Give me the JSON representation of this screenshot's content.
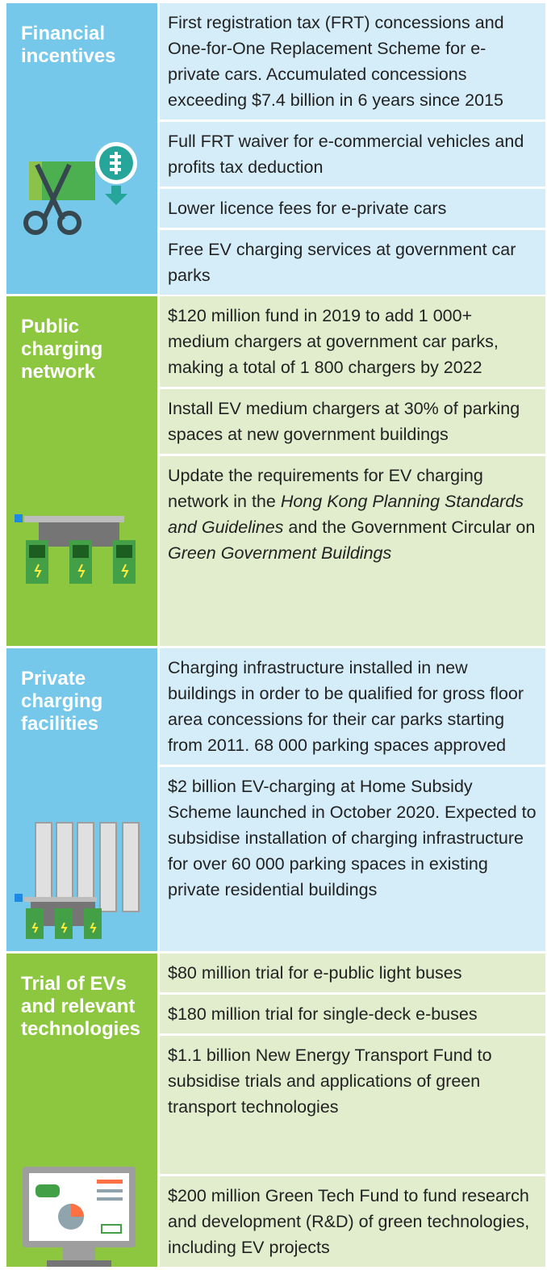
{
  "sections": [
    {
      "title": "Financial incentives",
      "items": [
        [
          "First registration tax (FRT) concessions and One-for-One Replacement Scheme for e-private cars. Accumulated concessions exceeding $7.4 billion in 6 years since 2015"
        ],
        [
          "Full FRT waiver for e-commercial vehicles and profits tax deduction"
        ],
        [
          "Lower licence fees for e-private cars"
        ],
        [
          "Free EV charging services at government car parks"
        ]
      ]
    },
    {
      "title": "Public charging network",
      "items": [
        [
          "$120 million fund in 2019 to add 1 000+ medium chargers at government car parks, making a total of 1 800 chargers by 2022"
        ],
        [
          "Install EV medium chargers at 30% of parking spaces at new government buildings"
        ],
        [
          "Update the requirements for EV charging network in the ",
          "Hong Kong Planning Standards and Guidelines",
          " and the Government Circular on ",
          "Green Government Buildings"
        ]
      ]
    },
    {
      "title": "Private charging facilities",
      "items": [
        [
          "Charging infrastructure installed in new buildings in order to be qualified for gross floor area concessions for their car parks starting from 2011. 68 000 parking spaces approved"
        ],
        [
          "$2 billion EV-charging at Home Subsidy Scheme launched in October 2020. Expected to subsidise installation of charging infrastructure for over 60 000 parking spaces in existing private residential buildings"
        ]
      ]
    },
    {
      "title": "Trial of EVs and relevant technologies",
      "items": [
        [
          "$80 million trial for e-public light buses"
        ],
        [
          "$180 million trial for single-deck e-buses"
        ],
        [
          "$1.1 billion New Energy Transport Fund to subsidise trials and applications of green transport technologies"
        ],
        [
          "$200 million Green Tech Fund to fund research and development (R&D) of green technologies, including EV projects"
        ]
      ]
    }
  ]
}
